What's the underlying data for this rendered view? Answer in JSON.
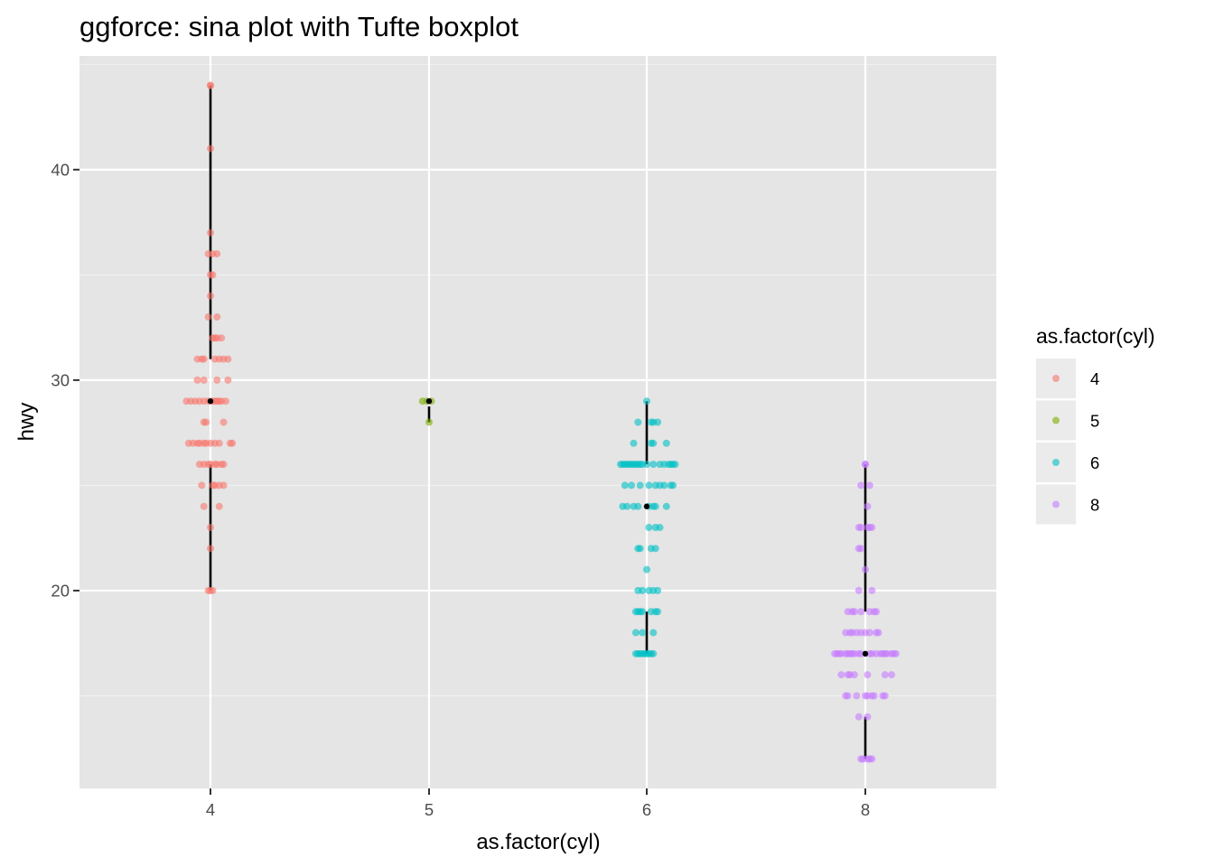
{
  "chart_data": {
    "type": "scatter",
    "subtype": "sina plot with Tufte boxplot",
    "title": "ggforce: sina plot with Tufte boxplot",
    "xlabel": "as.factor(cyl)",
    "ylabel": "hwy",
    "categories": [
      "4",
      "5",
      "6",
      "8"
    ],
    "y_ticks": [
      20,
      30,
      40
    ],
    "ylim": [
      10.6,
      45.4
    ],
    "grid": true,
    "legend": {
      "title": "as.factor(cyl)",
      "position": "right",
      "entries": [
        {
          "label": "4",
          "color": "#F8766D"
        },
        {
          "label": "5",
          "color": "#7CAE00"
        },
        {
          "label": "6",
          "color": "#00BFC4"
        },
        {
          "label": "8",
          "color": "#C77CFF"
        }
      ]
    },
    "series": [
      {
        "category": "4",
        "color": "#F8766D",
        "points": [
          [
            0.0,
            44
          ],
          [
            0.0,
            44
          ],
          [
            0.0,
            41
          ],
          [
            0.0,
            37
          ],
          [
            -0.01,
            36
          ],
          [
            0.01,
            36
          ],
          [
            0.03,
            36
          ],
          [
            0.0,
            35
          ],
          [
            0.01,
            35
          ],
          [
            0.0,
            34
          ],
          [
            -0.01,
            33
          ],
          [
            0.03,
            33
          ],
          [
            0.01,
            32
          ],
          [
            0.02,
            32
          ],
          [
            0.03,
            32
          ],
          [
            0.05,
            32
          ],
          [
            -0.06,
            31
          ],
          [
            -0.04,
            31
          ],
          [
            -0.03,
            31
          ],
          [
            0.02,
            31
          ],
          [
            0.04,
            31
          ],
          [
            0.06,
            31
          ],
          [
            0.08,
            31
          ],
          [
            -0.06,
            30
          ],
          [
            -0.03,
            30
          ],
          [
            0.03,
            30
          ],
          [
            0.08,
            30
          ],
          [
            -0.11,
            29
          ],
          [
            -0.09,
            29
          ],
          [
            -0.07,
            29
          ],
          [
            -0.05,
            29
          ],
          [
            -0.03,
            29
          ],
          [
            -0.01,
            29
          ],
          [
            0.01,
            29
          ],
          [
            0.02,
            29
          ],
          [
            0.03,
            29
          ],
          [
            0.04,
            29
          ],
          [
            0.05,
            29
          ],
          [
            0.07,
            29
          ],
          [
            -0.03,
            28
          ],
          [
            -0.02,
            28
          ],
          [
            0.06,
            28
          ],
          [
            -0.1,
            27
          ],
          [
            -0.08,
            27
          ],
          [
            -0.06,
            27
          ],
          [
            -0.05,
            27
          ],
          [
            -0.03,
            27
          ],
          [
            -0.02,
            27
          ],
          [
            0.0,
            27
          ],
          [
            0.02,
            27
          ],
          [
            0.04,
            27
          ],
          [
            0.09,
            27
          ],
          [
            0.1,
            27
          ],
          [
            -0.05,
            26
          ],
          [
            -0.03,
            26
          ],
          [
            -0.01,
            26
          ],
          [
            0.0,
            26
          ],
          [
            0.02,
            26
          ],
          [
            0.03,
            26
          ],
          [
            0.05,
            26
          ],
          [
            0.06,
            26
          ],
          [
            -0.04,
            25
          ],
          [
            0.01,
            25
          ],
          [
            0.02,
            25
          ],
          [
            0.04,
            25
          ],
          [
            0.06,
            25
          ],
          [
            -0.03,
            24
          ],
          [
            0.04,
            24
          ],
          [
            0.0,
            23
          ],
          [
            0.0,
            22
          ],
          [
            -0.01,
            20
          ],
          [
            0.0,
            20
          ],
          [
            0.01,
            20
          ]
        ],
        "tufte_box": {
          "lower_whisker": 20,
          "q1": 26,
          "median": 29,
          "q3": 31,
          "upper_whisker": 44
        }
      },
      {
        "category": "5",
        "color": "#7CAE00",
        "points": [
          [
            -0.03,
            29
          ],
          [
            -0.01,
            29
          ],
          [
            0.01,
            29
          ],
          [
            0.0,
            28
          ]
        ],
        "tufte_box": {
          "lower_whisker": 28,
          "q1": 28.75,
          "median": 29,
          "q3": 29,
          "upper_whisker": 29
        }
      },
      {
        "category": "6",
        "color": "#00BFC4",
        "points": [
          [
            0.0,
            29
          ],
          [
            -0.04,
            28
          ],
          [
            0.02,
            28
          ],
          [
            0.03,
            28
          ],
          [
            0.05,
            28
          ],
          [
            -0.06,
            27
          ],
          [
            0.02,
            27
          ],
          [
            0.03,
            27
          ],
          [
            0.09,
            27
          ],
          [
            -0.12,
            26
          ],
          [
            -0.11,
            26
          ],
          [
            -0.1,
            26
          ],
          [
            -0.09,
            26
          ],
          [
            -0.08,
            26
          ],
          [
            -0.07,
            26
          ],
          [
            -0.06,
            26
          ],
          [
            -0.05,
            26
          ],
          [
            -0.04,
            26
          ],
          [
            -0.03,
            26
          ],
          [
            -0.02,
            26
          ],
          [
            0.0,
            26
          ],
          [
            0.03,
            26
          ],
          [
            0.06,
            26
          ],
          [
            0.08,
            26
          ],
          [
            0.1,
            26
          ],
          [
            0.11,
            26
          ],
          [
            0.12,
            26
          ],
          [
            0.13,
            26
          ],
          [
            -0.1,
            25
          ],
          [
            -0.07,
            25
          ],
          [
            -0.03,
            25
          ],
          [
            0.01,
            25
          ],
          [
            0.04,
            25
          ],
          [
            0.06,
            25
          ],
          [
            0.08,
            25
          ],
          [
            0.11,
            25
          ],
          [
            0.12,
            25
          ],
          [
            -0.11,
            24
          ],
          [
            -0.09,
            24
          ],
          [
            -0.06,
            24
          ],
          [
            -0.04,
            24
          ],
          [
            0.01,
            24
          ],
          [
            0.03,
            24
          ],
          [
            0.04,
            24
          ],
          [
            0.09,
            24
          ],
          [
            0.01,
            23
          ],
          [
            0.04,
            23
          ],
          [
            0.06,
            23
          ],
          [
            -0.04,
            22
          ],
          [
            -0.03,
            22
          ],
          [
            0.02,
            22
          ],
          [
            0.04,
            22
          ],
          [
            0.0,
            21
          ],
          [
            -0.04,
            20
          ],
          [
            -0.02,
            20
          ],
          [
            0.01,
            20
          ],
          [
            0.03,
            20
          ],
          [
            0.05,
            20
          ],
          [
            -0.05,
            19
          ],
          [
            -0.04,
            19
          ],
          [
            -0.03,
            19
          ],
          [
            -0.02,
            19
          ],
          [
            0.02,
            19
          ],
          [
            0.04,
            19
          ],
          [
            0.05,
            19
          ],
          [
            -0.05,
            18
          ],
          [
            -0.02,
            18
          ],
          [
            0.03,
            18
          ],
          [
            -0.05,
            17
          ],
          [
            -0.04,
            17
          ],
          [
            -0.03,
            17
          ],
          [
            -0.02,
            17
          ],
          [
            -0.01,
            17
          ],
          [
            0.0,
            17
          ],
          [
            0.01,
            17
          ],
          [
            0.02,
            17
          ],
          [
            0.03,
            17
          ]
        ],
        "tufte_box": {
          "lower_whisker": 17,
          "q1": 19,
          "median": 24,
          "q3": 26,
          "upper_whisker": 29
        }
      },
      {
        "category": "8",
        "color": "#C77CFF",
        "points": [
          [
            0.0,
            26
          ],
          [
            0.0,
            26
          ],
          [
            -0.02,
            25
          ],
          [
            0.02,
            25
          ],
          [
            0.01,
            24
          ],
          [
            -0.03,
            23
          ],
          [
            -0.02,
            23
          ],
          [
            0.01,
            23
          ],
          [
            0.02,
            23
          ],
          [
            0.03,
            23
          ],
          [
            -0.03,
            22
          ],
          [
            -0.02,
            22
          ],
          [
            0.0,
            21
          ],
          [
            -0.03,
            20
          ],
          [
            0.03,
            20
          ],
          [
            -0.08,
            19
          ],
          [
            -0.06,
            19
          ],
          [
            -0.05,
            19
          ],
          [
            -0.02,
            19
          ],
          [
            0.02,
            19
          ],
          [
            0.04,
            19
          ],
          [
            0.05,
            19
          ],
          [
            -0.09,
            18
          ],
          [
            -0.07,
            18
          ],
          [
            -0.06,
            18
          ],
          [
            -0.04,
            18
          ],
          [
            -0.02,
            18
          ],
          [
            0.0,
            18
          ],
          [
            0.02,
            18
          ],
          [
            0.05,
            18
          ],
          [
            0.06,
            18
          ],
          [
            -0.14,
            17
          ],
          [
            -0.13,
            17
          ],
          [
            -0.12,
            17
          ],
          [
            -0.11,
            17
          ],
          [
            -0.09,
            17
          ],
          [
            -0.08,
            17
          ],
          [
            -0.07,
            17
          ],
          [
            -0.06,
            17
          ],
          [
            -0.05,
            17
          ],
          [
            -0.03,
            17
          ],
          [
            -0.02,
            17
          ],
          [
            0.02,
            17
          ],
          [
            0.03,
            17
          ],
          [
            0.05,
            17
          ],
          [
            0.07,
            17
          ],
          [
            0.08,
            17
          ],
          [
            0.09,
            17
          ],
          [
            0.1,
            17
          ],
          [
            0.12,
            17
          ],
          [
            0.13,
            17
          ],
          [
            0.14,
            17
          ],
          [
            -0.11,
            16
          ],
          [
            -0.08,
            16
          ],
          [
            -0.07,
            16
          ],
          [
            -0.05,
            16
          ],
          [
            0.01,
            16
          ],
          [
            0.09,
            16
          ],
          [
            0.12,
            16
          ],
          [
            -0.09,
            15
          ],
          [
            -0.08,
            15
          ],
          [
            -0.04,
            15
          ],
          [
            0.0,
            15
          ],
          [
            0.01,
            15
          ],
          [
            0.03,
            15
          ],
          [
            0.04,
            15
          ],
          [
            0.08,
            15
          ],
          [
            0.09,
            15
          ],
          [
            -0.03,
            14
          ],
          [
            0.01,
            14
          ],
          [
            -0.02,
            12
          ],
          [
            -0.01,
            12
          ],
          [
            0.01,
            12
          ],
          [
            0.02,
            12
          ],
          [
            0.03,
            12
          ]
        ],
        "tufte_box": {
          "lower_whisker": 12,
          "q1": 14,
          "median": 17,
          "q3": 19,
          "upper_whisker": 26
        }
      }
    ]
  }
}
